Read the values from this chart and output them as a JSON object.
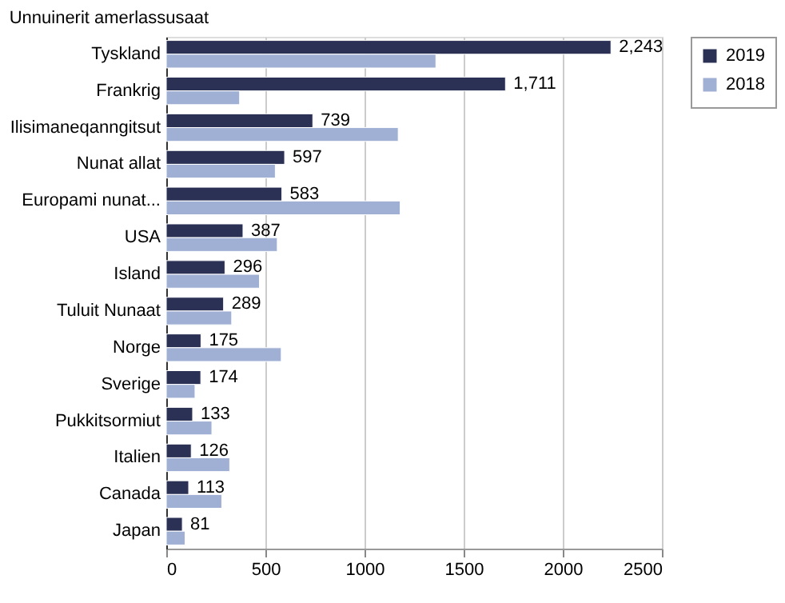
{
  "chart_data": {
    "type": "bar",
    "orientation": "horizontal",
    "title": "Unnuinerit amerlassusaat",
    "categories": [
      "Tyskland",
      "Frankrig",
      "Ilisimaneqanngitsut",
      "Nunat allat",
      "Europami nunat...",
      "USA",
      "Island",
      "Tuluit Nunaat",
      "Norge",
      "Sverige",
      "Pukkitsormiut",
      "Italien",
      "Canada",
      "Japan"
    ],
    "series": [
      {
        "name": "2019",
        "color": "#2b3055",
        "values": [
          2243,
          1711,
          739,
          597,
          583,
          387,
          296,
          289,
          175,
          174,
          133,
          126,
          113,
          81
        ],
        "value_labels": [
          "2,243",
          "1,711",
          "739",
          "597",
          "583",
          "387",
          "296",
          "289",
          "175",
          "174",
          "133",
          "126",
          "113",
          "81"
        ]
      },
      {
        "name": "2018",
        "color": "#a0b0d4",
        "values": [
          1360,
          370,
          1170,
          550,
          1180,
          560,
          470,
          330,
          580,
          145,
          230,
          320,
          280,
          95
        ]
      }
    ],
    "xlim": [
      0,
      2500
    ],
    "xticks": [
      0,
      500,
      1000,
      1500,
      2000,
      2500
    ],
    "grid": "x",
    "legend": "right"
  }
}
